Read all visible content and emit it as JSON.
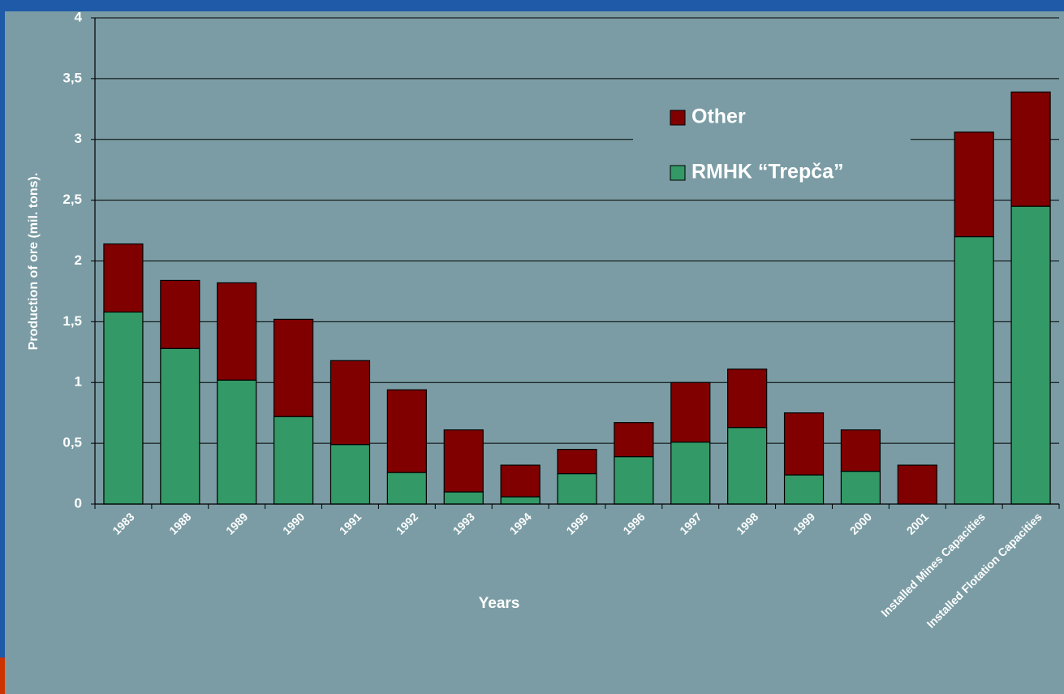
{
  "chart_data": {
    "type": "stacked_bar",
    "y_label": "Production of ore (mil. tons).",
    "x_label": "Years",
    "categories": [
      "1983",
      "1988",
      "1989",
      "1990",
      "1991",
      "1992",
      "1993",
      "1994",
      "1995",
      "1996",
      "1997",
      "1998",
      "1999",
      "2000",
      "2001",
      "Installed Mines Capacities",
      "Installed Flotation Capacities"
    ],
    "series": [
      {
        "name": "RMHK “Trepča”",
        "color": "#339966",
        "values": [
          1.58,
          1.28,
          1.02,
          0.72,
          0.49,
          0.26,
          0.1,
          0.06,
          0.25,
          0.39,
          0.51,
          0.63,
          0.24,
          0.27,
          0,
          2.2,
          2.45
        ]
      },
      {
        "name": "Other",
        "color": "#800000",
        "values": [
          0.56,
          0.56,
          0.8,
          0.8,
          0.69,
          0.68,
          0.51,
          0.26,
          0.2,
          0.28,
          0.49,
          0.48,
          0.51,
          0.34,
          0.32,
          0.86,
          0.94
        ]
      }
    ],
    "ylim": [
      0,
      4
    ],
    "yticks": [
      0,
      {
        "value": 0.5,
        "label": "0,5"
      },
      1,
      {
        "value": 1.5,
        "label": "1,5"
      },
      2,
      {
        "value": 2.5,
        "label": "2,5"
      },
      3,
      {
        "value": 3.5,
        "label": "3,5"
      },
      4
    ],
    "grid": true
  }
}
